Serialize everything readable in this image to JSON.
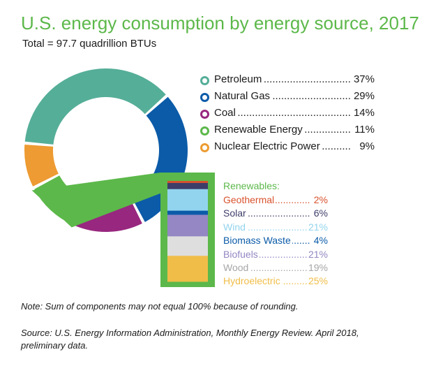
{
  "title": "U.S. energy consumption by energy source, 2017",
  "subtitle": "Total = 97.7 quadrillion BTUs",
  "chart_data": {
    "type": "pie",
    "title": "U.S. energy consumption by energy source, 2017",
    "subtitle": "Total = 97.7 quadrillion BTUs",
    "series": [
      {
        "name": "Petroleum",
        "value": 37,
        "label": "37%",
        "color": "#55ae98"
      },
      {
        "name": "Natural Gas",
        "value": 29,
        "label": "29%",
        "color": "#0b5ba8"
      },
      {
        "name": "Coal",
        "value": 14,
        "label": "14%",
        "color": "#98277f"
      },
      {
        "name": "Renewable Energy",
        "value": 11,
        "label": "11%",
        "color": "#5cb84a"
      },
      {
        "name": "Nuclear Electric Power",
        "value": 9,
        "label": "9%",
        "color": "#ed9b32"
      }
    ],
    "renewables": {
      "title": "Renewables:",
      "items": [
        {
          "name": "Geothermal",
          "value": 2,
          "label": "2%",
          "color": "#d8522c"
        },
        {
          "name": "Solar",
          "value": 6,
          "label": "6%",
          "color": "#3e3d6a"
        },
        {
          "name": "Wind",
          "value": 21,
          "label": "21%",
          "color": "#92d4ee"
        },
        {
          "name": "Biomass Waste",
          "value": 4,
          "label": "4%",
          "color": "#0b5ba8"
        },
        {
          "name": "Biofuels",
          "value": 21,
          "label": "21%",
          "color": "#9487c3"
        },
        {
          "name": "Wood",
          "value": 19,
          "label": "19%",
          "color": "#a6a6a6"
        },
        {
          "name": "Hydroelectric",
          "value": 25,
          "label": "25%",
          "color": "#f0bd48"
        }
      ],
      "stack_colors": {
        "Wood": "#dedede"
      }
    }
  },
  "note": "Note: Sum of components may not equal 100% because of rounding.",
  "source": "Source: U.S. Energy Information Administration, Monthly Energy Review. April 2018, preliminary data.",
  "colors": {
    "accent": "#5cb84a",
    "text": "#1a1a1a"
  }
}
